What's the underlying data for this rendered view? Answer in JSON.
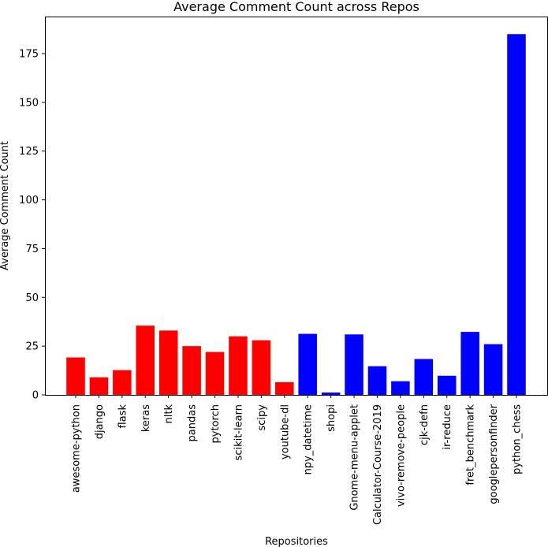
{
  "chart_data": {
    "type": "bar",
    "title": "Average Comment Count across Repos",
    "xlabel": "Repositories",
    "ylabel": "Average Comment Count",
    "ylim": [
      0,
      194
    ],
    "yticks": [
      0,
      25,
      50,
      75,
      100,
      125,
      150,
      175
    ],
    "grid": false,
    "categories": [
      "awesome-python",
      "django",
      "flask",
      "keras",
      "nltk",
      "pandas",
      "pytorch",
      "scikit-learn",
      "scipy",
      "youtube-dl",
      "npy_datetime",
      "shopi",
      "Gnome-menu-applet",
      "Calculator-Course-2019",
      "vivo-remove-people",
      "cjk-defn",
      "ir-reduce",
      "fret_benchmark",
      "googlepersonfinder",
      "python_chess"
    ],
    "values": [
      19.2,
      9.0,
      12.7,
      35.5,
      33.0,
      25.0,
      22.0,
      30.0,
      28.0,
      6.5,
      31.3,
      1.2,
      31.0,
      14.7,
      7.0,
      18.4,
      9.8,
      32.3,
      26.0,
      185.0
    ],
    "colors": [
      "#ff0000",
      "#ff0000",
      "#ff0000",
      "#ff0000",
      "#ff0000",
      "#ff0000",
      "#ff0000",
      "#ff0000",
      "#ff0000",
      "#ff0000",
      "#0000ff",
      "#0000ff",
      "#0000ff",
      "#0000ff",
      "#0000ff",
      "#0000ff",
      "#0000ff",
      "#0000ff",
      "#0000ff",
      "#0000ff"
    ]
  }
}
